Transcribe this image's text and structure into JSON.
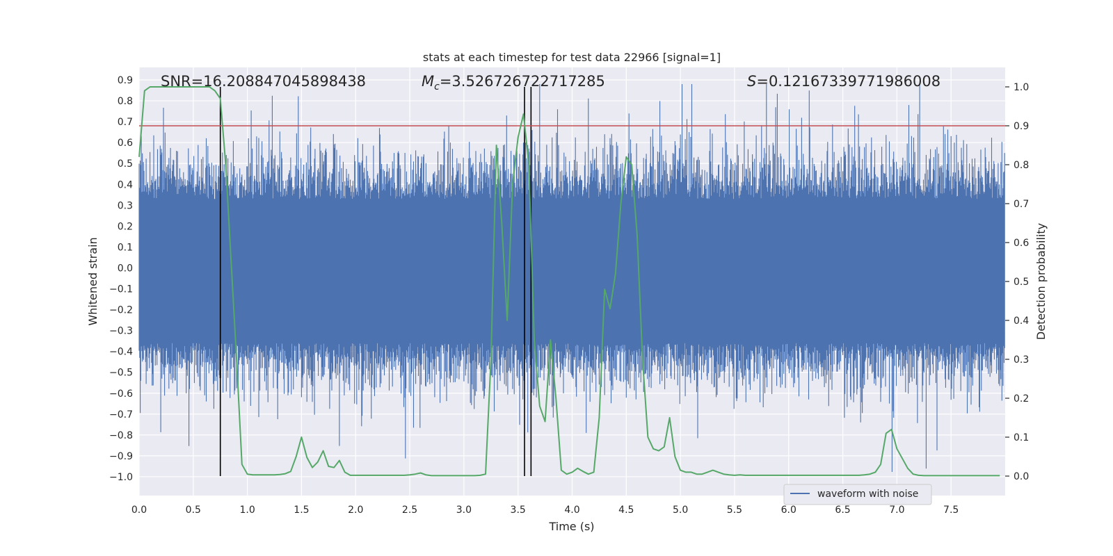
{
  "chart_data": {
    "type": "line",
    "title": "stats at each timestep for test data 22966 [signal=1]",
    "xlabel": "Time (s)",
    "ylabel_left": "Whitened strain",
    "ylabel_right": "Detection probability",
    "xlim": [
      0.0,
      8.0
    ],
    "ylim_left": [
      -1.09,
      0.96
    ],
    "ylim_right": [
      -0.05,
      1.05
    ],
    "x_ticks": [
      "0.0",
      "0.5",
      "1.0",
      "1.5",
      "2.0",
      "2.5",
      "3.0",
      "3.5",
      "4.0",
      "4.5",
      "5.0",
      "5.5",
      "6.0",
      "6.5",
      "7.0",
      "7.5"
    ],
    "y_ticks_left": [
      "0.9",
      "0.8",
      "0.7",
      "0.6",
      "0.5",
      "0.4",
      "0.3",
      "0.2",
      "0.1",
      "0.0",
      "−0.1",
      "−0.2",
      "−0.3",
      "−0.4",
      "−0.5",
      "−0.6",
      "−0.7",
      "−0.8",
      "−0.9",
      "−1.0"
    ],
    "y_ticks_right": [
      "1.0",
      "0.9",
      "0.8",
      "0.7",
      "0.6",
      "0.5",
      "0.4",
      "0.3",
      "0.2",
      "0.1",
      "0.0"
    ],
    "grid": true,
    "legend": {
      "position": "lower-right",
      "entries": [
        "waveform with noise"
      ]
    },
    "annotations": {
      "snr": "SNR=16.208847045898438",
      "mc_symbol": "M",
      "mc_sub": "c",
      "mc_value": "=3.526726722717285",
      "s_symbol": "S",
      "s_value": "=0.12167339771986008"
    },
    "threshold": {
      "value_right": 0.9,
      "color": "#c44e52"
    },
    "vertical_markers": [
      0.75,
      3.56,
      3.62
    ],
    "colors": {
      "waveform": "#4c72b0",
      "probability": "#55a868",
      "markers": "#000000",
      "background": "#eaeaf2",
      "grid": "#ffffff"
    },
    "probability_series": {
      "x": [
        0.0,
        0.05,
        0.1,
        0.15,
        0.2,
        0.25,
        0.3,
        0.35,
        0.4,
        0.45,
        0.5,
        0.55,
        0.6,
        0.65,
        0.7,
        0.75,
        0.8,
        0.85,
        0.9,
        0.95,
        1.0,
        1.05,
        1.1,
        1.15,
        1.2,
        1.25,
        1.3,
        1.35,
        1.4,
        1.45,
        1.5,
        1.55,
        1.6,
        1.65,
        1.7,
        1.75,
        1.8,
        1.85,
        1.9,
        1.95,
        2.0,
        2.05,
        2.1,
        2.15,
        2.2,
        2.25,
        2.3,
        2.35,
        2.4,
        2.45,
        2.5,
        2.55,
        2.6,
        2.65,
        2.7,
        2.75,
        2.8,
        2.85,
        2.9,
        2.95,
        3.0,
        3.05,
        3.1,
        3.15,
        3.2,
        3.25,
        3.3,
        3.35,
        3.4,
        3.45,
        3.5,
        3.55,
        3.6,
        3.65,
        3.7,
        3.75,
        3.8,
        3.85,
        3.9,
        3.95,
        4.0,
        4.05,
        4.1,
        4.15,
        4.2,
        4.25,
        4.3,
        4.35,
        4.4,
        4.45,
        4.5,
        4.55,
        4.6,
        4.65,
        4.7,
        4.75,
        4.8,
        4.85,
        4.9,
        4.95,
        5.0,
        5.05,
        5.1,
        5.15,
        5.2,
        5.25,
        5.3,
        5.35,
        5.4,
        5.45,
        5.5,
        5.55,
        5.6,
        5.65,
        5.7,
        5.75,
        5.8,
        5.85,
        5.9,
        5.95,
        6.0,
        6.05,
        6.1,
        6.15,
        6.2,
        6.25,
        6.3,
        6.35,
        6.4,
        6.45,
        6.5,
        6.55,
        6.6,
        6.65,
        6.7,
        6.75,
        6.8,
        6.85,
        6.9,
        6.95,
        7.0,
        7.05,
        7.1,
        7.15,
        7.2,
        7.25,
        7.3,
        7.35,
        7.4,
        7.45,
        7.5,
        7.55,
        7.6,
        7.65,
        7.7,
        7.75,
        7.8,
        7.85,
        7.9,
        7.95
      ],
      "y": [
        0.82,
        0.99,
        1.0,
        1.0,
        1.0,
        1.0,
        1.0,
        1.0,
        1.0,
        1.0,
        1.0,
        1.0,
        1.0,
        1.0,
        0.99,
        0.97,
        0.8,
        0.55,
        0.3,
        0.03,
        0.005,
        0.003,
        0.003,
        0.003,
        0.003,
        0.003,
        0.004,
        0.006,
        0.012,
        0.05,
        0.1,
        0.048,
        0.022,
        0.036,
        0.065,
        0.025,
        0.022,
        0.04,
        0.01,
        0.002,
        0.002,
        0.002,
        0.002,
        0.002,
        0.002,
        0.002,
        0.002,
        0.002,
        0.002,
        0.002,
        0.003,
        0.005,
        0.008,
        0.003,
        0.001,
        0.001,
        0.001,
        0.001,
        0.001,
        0.001,
        0.001,
        0.001,
        0.001,
        0.002,
        0.005,
        0.3,
        0.85,
        0.65,
        0.4,
        0.75,
        0.87,
        0.93,
        0.8,
        0.35,
        0.18,
        0.14,
        0.35,
        0.2,
        0.015,
        0.005,
        0.01,
        0.02,
        0.012,
        0.005,
        0.01,
        0.15,
        0.48,
        0.43,
        0.52,
        0.7,
        0.82,
        0.8,
        0.62,
        0.3,
        0.1,
        0.07,
        0.065,
        0.075,
        0.15,
        0.05,
        0.015,
        0.01,
        0.01,
        0.005,
        0.005,
        0.01,
        0.015,
        0.01,
        0.005,
        0.003,
        0.002,
        0.003,
        0.002,
        0.002,
        0.002,
        0.002,
        0.002,
        0.002,
        0.002,
        0.002,
        0.002,
        0.002,
        0.002,
        0.002,
        0.002,
        0.002,
        0.002,
        0.002,
        0.002,
        0.002,
        0.002,
        0.002,
        0.002,
        0.002,
        0.003,
        0.005,
        0.01,
        0.03,
        0.11,
        0.12,
        0.07,
        0.045,
        0.02,
        0.005,
        0.002,
        0.001,
        0.001,
        0.001,
        0.001,
        0.001,
        0.001,
        0.001,
        0.001,
        0.001,
        0.001,
        0.001,
        0.001,
        0.001,
        0.001,
        0.001
      ]
    },
    "waveform_series": {
      "description_range_left": [
        -1.0,
        0.88
      ],
      "num_samples": 1600,
      "x_range": [
        0.0,
        8.0
      ]
    }
  }
}
